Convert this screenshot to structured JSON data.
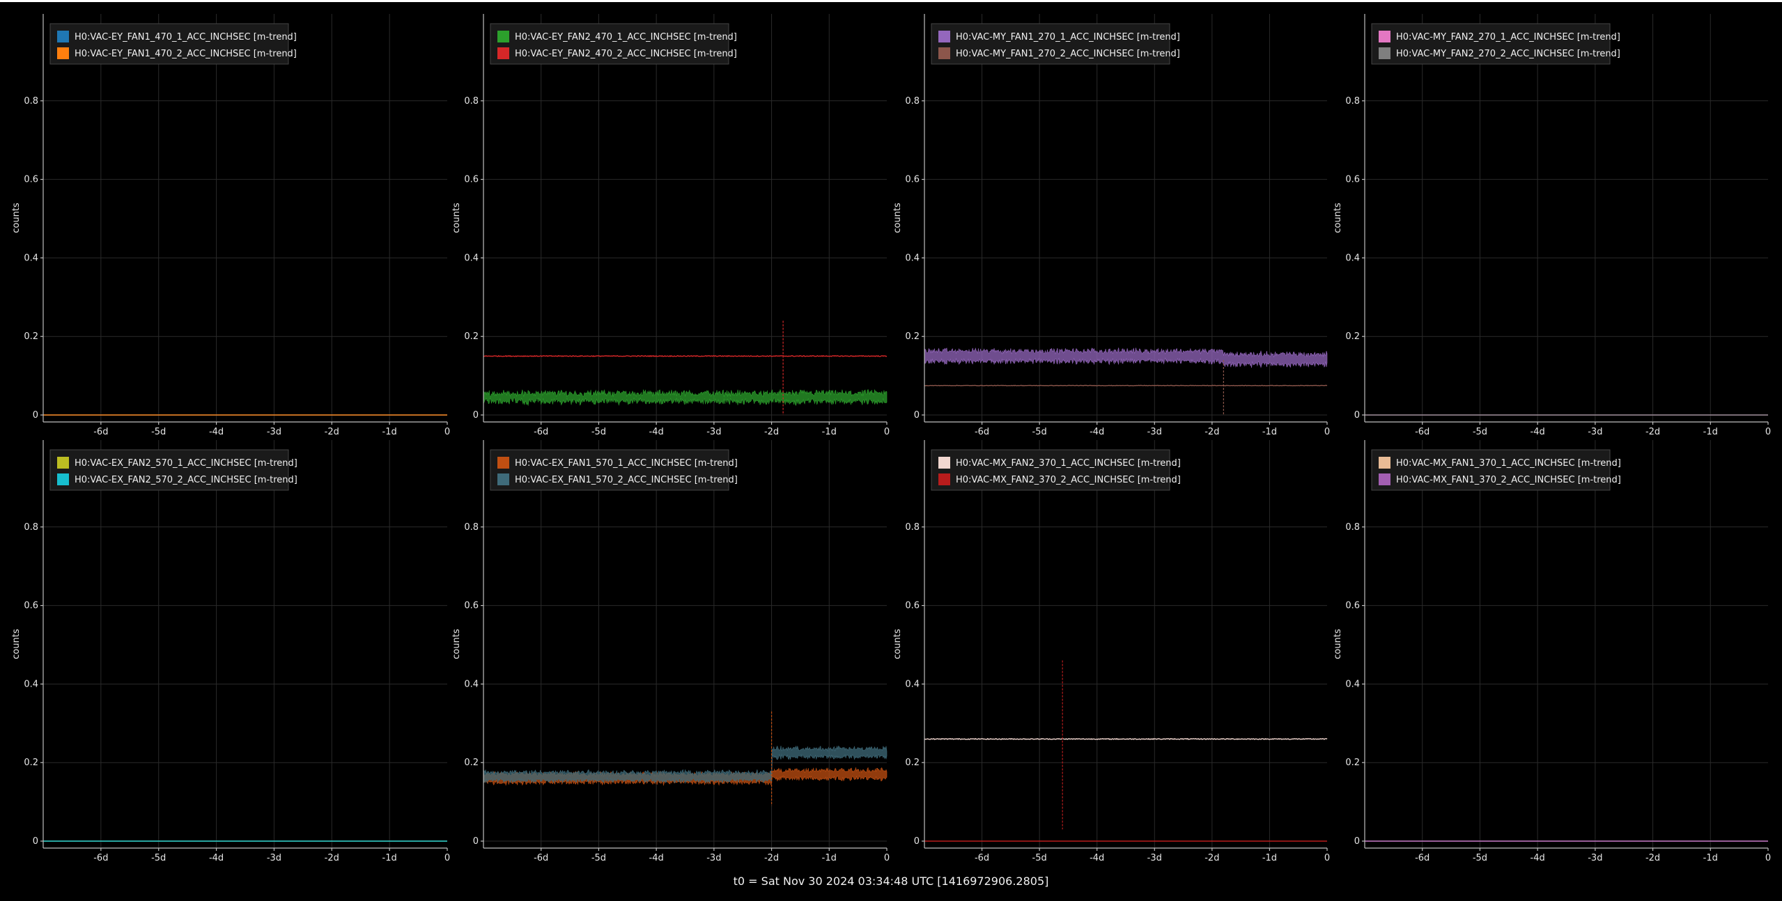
{
  "footer": "t0 = Sat Nov 30 2024 03:34:48 UTC [1416972906.2805]",
  "chart_data": [
    {
      "type": "line",
      "ylabel": "counts",
      "ylim": [
        0,
        1
      ],
      "xlim": [
        -7,
        0
      ],
      "x_ticks": [
        "-6d",
        "-5d",
        "-4d",
        "-3d",
        "-2d",
        "-1d",
        "0"
      ],
      "y_ticks": [
        "0",
        "0.2",
        "0.4",
        "0.6",
        "0.8"
      ],
      "legend_position": "top-left",
      "series": [
        {
          "name": "H0:VAC-EY_FAN1_470_1_ACC_INCHSEC [m-trend]",
          "color": "#1f77b4",
          "level": 0.0,
          "noise": 0.0,
          "band": 0.0
        },
        {
          "name": "H0:VAC-EY_FAN1_470_2_ACC_INCHSEC [m-trend]",
          "color": "#ff7f0e",
          "level": 0.0,
          "noise": 0.0,
          "band": 0.0
        }
      ]
    },
    {
      "type": "line",
      "ylabel": "counts",
      "ylim": [
        0,
        1
      ],
      "xlim": [
        -7,
        0
      ],
      "x_ticks": [
        "-6d",
        "-5d",
        "-4d",
        "-3d",
        "-2d",
        "-1d",
        "0"
      ],
      "y_ticks": [
        "0",
        "0.2",
        "0.4",
        "0.6",
        "0.8"
      ],
      "legend_position": "top-left",
      "spike": {
        "x": -1.8,
        "low": 0.0,
        "high": 0.24
      },
      "series": [
        {
          "name": "H0:VAC-EY_FAN2_470_1_ACC_INCHSEC [m-trend]",
          "color": "#2ca02c",
          "level": 0.045,
          "noise": 0.012,
          "band": 0.02
        },
        {
          "name": "H0:VAC-EY_FAN2_470_2_ACC_INCHSEC [m-trend]",
          "color": "#d62728",
          "level": 0.15,
          "noise": 0.002,
          "band": 0.0
        }
      ]
    },
    {
      "type": "line",
      "ylabel": "counts",
      "ylim": [
        0,
        1
      ],
      "xlim": [
        -7,
        0
      ],
      "x_ticks": [
        "-6d",
        "-5d",
        "-4d",
        "-3d",
        "-2d",
        "-1d",
        "0"
      ],
      "y_ticks": [
        "0",
        "0.2",
        "0.4",
        "0.6",
        "0.8"
      ],
      "legend_position": "top-left",
      "spike": {
        "x": -1.8,
        "low": 0.0,
        "high": 0.14
      },
      "series": [
        {
          "name": "H0:VAC-MY_FAN1_270_1_ACC_INCHSEC [m-trend]",
          "color": "#9467bd",
          "level": 0.15,
          "noise": 0.006,
          "band": 0.025,
          "step_x": -1.8,
          "step_level": 0.142
        },
        {
          "name": "H0:VAC-MY_FAN1_270_2_ACC_INCHSEC [m-trend]",
          "color": "#8c564b",
          "level": 0.075,
          "noise": 0.001,
          "band": 0.0
        }
      ]
    },
    {
      "type": "line",
      "ylabel": "counts",
      "ylim": [
        0,
        1
      ],
      "xlim": [
        -7,
        0
      ],
      "x_ticks": [
        "-6d",
        "-5d",
        "-4d",
        "-3d",
        "-2d",
        "-1d",
        "0"
      ],
      "y_ticks": [
        "0",
        "0.2",
        "0.4",
        "0.6",
        "0.8"
      ],
      "legend_position": "top-left",
      "series": [
        {
          "name": "H0:VAC-MY_FAN2_270_1_ACC_INCHSEC [m-trend]",
          "color": "#e377c2",
          "level": 0.0,
          "noise": 0.0,
          "band": 0.0
        },
        {
          "name": "H0:VAC-MY_FAN2_270_2_ACC_INCHSEC [m-trend]",
          "color": "#7f7f7f",
          "level": 0.0,
          "noise": 0.0,
          "band": 0.0
        }
      ]
    },
    {
      "type": "line",
      "ylabel": "counts",
      "ylim": [
        0,
        1
      ],
      "xlim": [
        -7,
        0
      ],
      "x_ticks": [
        "-6d",
        "-5d",
        "-4d",
        "-3d",
        "-2d",
        "-1d",
        "0"
      ],
      "y_ticks": [
        "0",
        "0.2",
        "0.4",
        "0.6",
        "0.8"
      ],
      "legend_position": "top-left",
      "series": [
        {
          "name": "H0:VAC-EX_FAN2_570_1_ACC_INCHSEC [m-trend]",
          "color": "#bcbd22",
          "level": 0.0,
          "noise": 0.0,
          "band": 0.0
        },
        {
          "name": "H0:VAC-EX_FAN2_570_2_ACC_INCHSEC [m-trend]",
          "color": "#17becf",
          "level": 0.0,
          "noise": 0.0,
          "band": 0.0
        }
      ]
    },
    {
      "type": "line",
      "ylabel": "counts",
      "ylim": [
        0,
        1
      ],
      "xlim": [
        -7,
        0
      ],
      "x_ticks": [
        "-6d",
        "-5d",
        "-4d",
        "-3d",
        "-2d",
        "-1d",
        "0"
      ],
      "y_ticks": [
        "0",
        "0.2",
        "0.4",
        "0.6",
        "0.8"
      ],
      "legend_position": "top-left",
      "spike": {
        "x": -2.0,
        "low": 0.09,
        "high": 0.33
      },
      "series": [
        {
          "name": "H0:VAC-EX_FAN1_570_1_ACC_INCHSEC [m-trend]",
          "color": "#c14f12",
          "level": 0.16,
          "noise": 0.006,
          "band": 0.02,
          "step_x": -2.0,
          "step_level": 0.17
        },
        {
          "name": "H0:VAC-EX_FAN1_570_2_ACC_INCHSEC [m-trend]",
          "color": "#3f6b7a",
          "level": 0.165,
          "noise": 0.006,
          "band": 0.02,
          "step_x": -2.0,
          "step_level": 0.225
        }
      ]
    },
    {
      "type": "line",
      "ylabel": "counts",
      "ylim": [
        0,
        1
      ],
      "xlim": [
        -7,
        0
      ],
      "x_ticks": [
        "-6d",
        "-5d",
        "-4d",
        "-3d",
        "-2d",
        "-1d",
        "0"
      ],
      "y_ticks": [
        "0",
        "0.2",
        "0.4",
        "0.6",
        "0.8"
      ],
      "legend_position": "top-left",
      "spike": {
        "x": -4.6,
        "low": 0.03,
        "high": 0.46
      },
      "series": [
        {
          "name": "H0:VAC-MX_FAN2_370_1_ACC_INCHSEC [m-trend]",
          "color": "#f2d7d0",
          "level": 0.26,
          "noise": 0.002,
          "band": 0.0
        },
        {
          "name": "H0:VAC-MX_FAN2_370_2_ACC_INCHSEC [m-trend]",
          "color": "#b91c1c",
          "level": 0.0,
          "noise": 0.0,
          "band": 0.0
        }
      ]
    },
    {
      "type": "line",
      "ylabel": "counts",
      "ylim": [
        0,
        1
      ],
      "xlim": [
        -7,
        0
      ],
      "x_ticks": [
        "-6d",
        "-5d",
        "-4d",
        "-3d",
        "-2d",
        "-1d",
        "0"
      ],
      "y_ticks": [
        "0",
        "0.2",
        "0.4",
        "0.6",
        "0.8"
      ],
      "legend_position": "top-left",
      "series": [
        {
          "name": "H0:VAC-MX_FAN1_370_1_ACC_INCHSEC [m-trend]",
          "color": "#e8bb95",
          "level": 0.0,
          "noise": 0.0,
          "band": 0.0
        },
        {
          "name": "H0:VAC-MX_FAN1_370_2_ACC_INCHSEC [m-trend]",
          "color": "#a35fb2",
          "level": 0.0,
          "noise": 0.0,
          "band": 0.0
        }
      ]
    }
  ]
}
